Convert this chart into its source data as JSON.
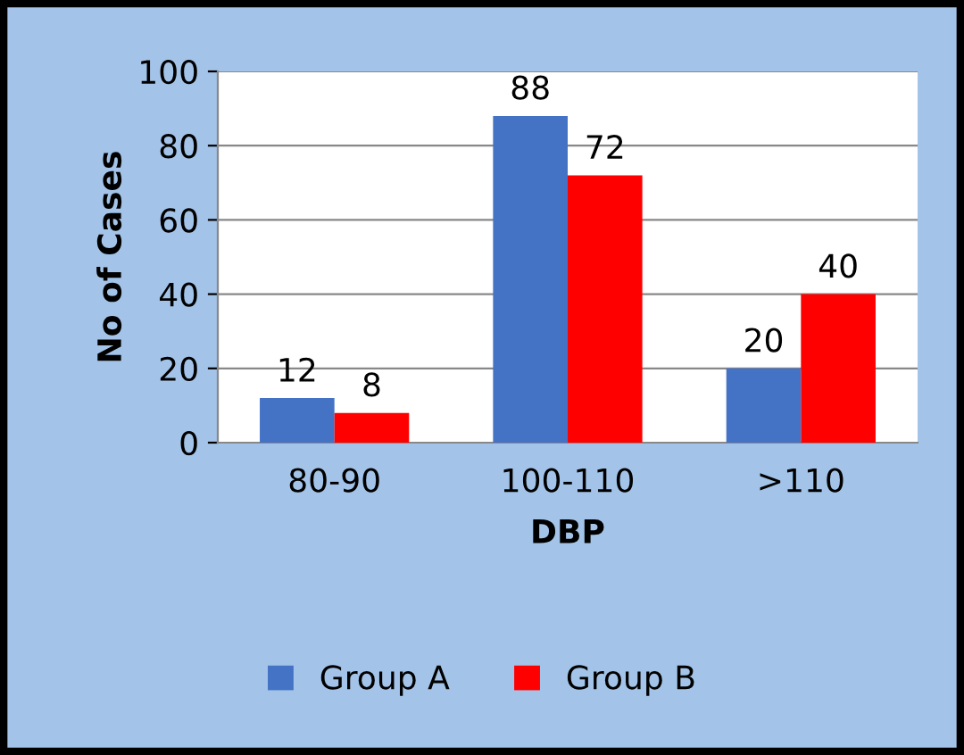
{
  "chart_data": {
    "type": "bar",
    "xlabel": "DBP",
    "ylabel": "No of Cases",
    "categories": [
      "80-90",
      "100-110",
      ">110"
    ],
    "series": [
      {
        "name": "Group A",
        "color": "#4472c4",
        "values": [
          12,
          88,
          20
        ]
      },
      {
        "name": "Group B",
        "color": "#ff0000",
        "values": [
          8,
          72,
          40
        ]
      }
    ],
    "ylim": [
      0,
      100
    ],
    "yticks": [
      0,
      20,
      40,
      60,
      80,
      100
    ],
    "grid": "y",
    "legend": "bottom",
    "data_labels": true
  }
}
